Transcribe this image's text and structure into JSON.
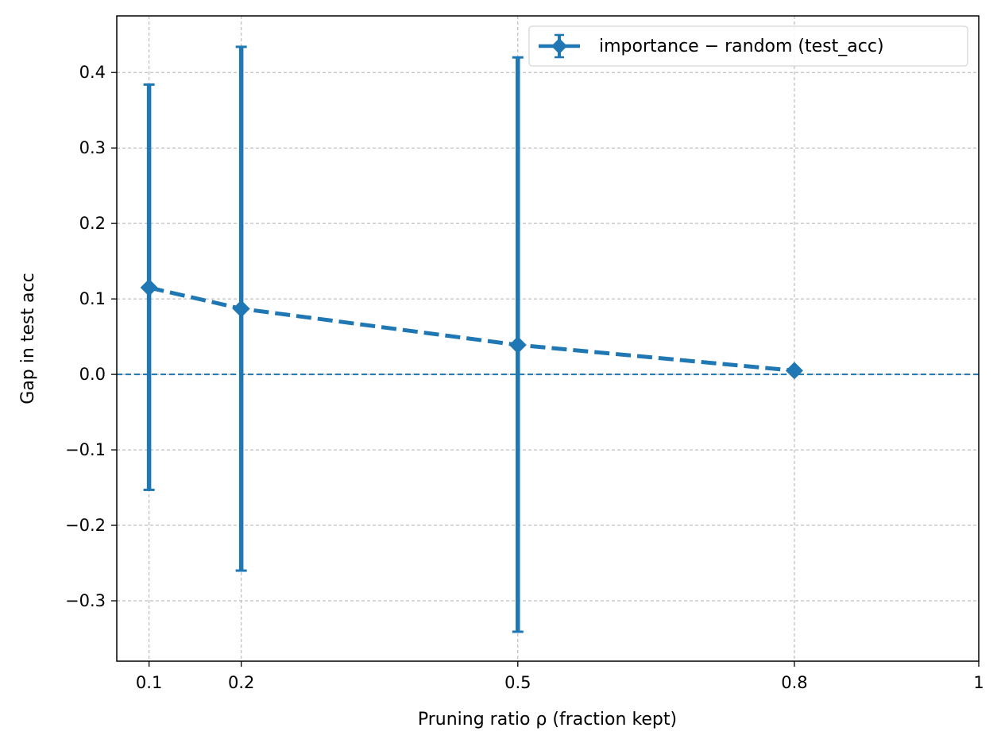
{
  "chart_data": {
    "type": "line",
    "title": "",
    "xlabel": "Pruning ratio ρ (fraction kept)",
    "ylabel": "Gap in test acc",
    "xlim": [
      0.065,
      1.0
    ],
    "ylim": [
      -0.38,
      0.475
    ],
    "grid": true,
    "legend_position": "top-right",
    "x_ticks": [
      0.1,
      0.2,
      0.5,
      0.8,
      1.0
    ],
    "x_tick_labels": [
      "0.1",
      "0.2",
      "0.5",
      "0.8",
      "1"
    ],
    "y_ticks": [
      -0.3,
      -0.2,
      -0.1,
      0.0,
      0.1,
      0.2,
      0.3,
      0.4
    ],
    "y_tick_labels": [
      "−0.3",
      "−0.2",
      "−0.1",
      "0.0",
      "0.1",
      "0.2",
      "0.3",
      "0.4"
    ],
    "reference_line": {
      "y": 0.0,
      "color": "#1f77b4",
      "style": "dashed"
    },
    "series": [
      {
        "name": "importance − random (test_acc)",
        "color": "#1f77b4",
        "marker": "diamond",
        "linestyle": "dashed",
        "x": [
          0.1,
          0.2,
          0.5,
          0.8
        ],
        "y": [
          0.115,
          0.087,
          0.039,
          0.005
        ],
        "err_low": [
          -0.153,
          -0.26,
          -0.341,
          0.005
        ],
        "err_high": [
          0.384,
          0.434,
          0.42,
          0.005
        ]
      }
    ]
  }
}
